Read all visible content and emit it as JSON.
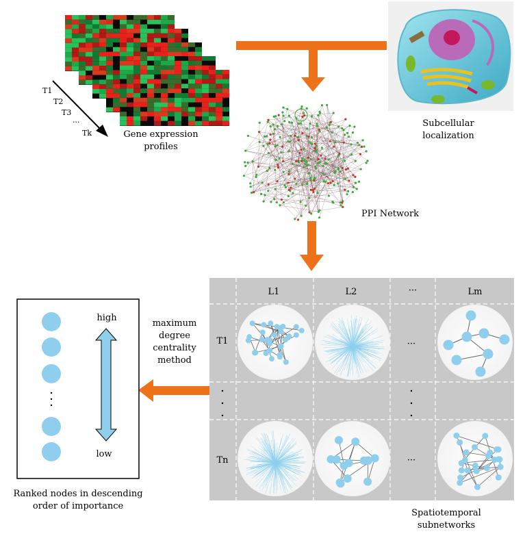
{
  "labels": {
    "gene_expression": "Gene expression\nprofiles",
    "subcellular": "Subcellular\nlocalization",
    "ppi_network": "PPI Network",
    "method": "maximum\ndegree\ncentrality\nmethod",
    "ranked": "Ranked nodes in descending\norder of importance",
    "spatiotemporal": "Spatiotemporal\nsubnetworks",
    "high": "high",
    "low": "low"
  },
  "time_labels": [
    "T1",
    "T2",
    "T3",
    "...",
    "Tk"
  ],
  "grid": {
    "columns": [
      "L1",
      "L2",
      "···",
      "Lm"
    ],
    "rows": [
      "T1",
      "···",
      "Tn"
    ],
    "ellipsis": "···"
  },
  "colors": {
    "arrow": "#ee7219",
    "node": "#8fcfed",
    "grid_bg": "#c8c8c8",
    "heat_red": "#e8221b",
    "heat_green": "#1fa84a"
  }
}
